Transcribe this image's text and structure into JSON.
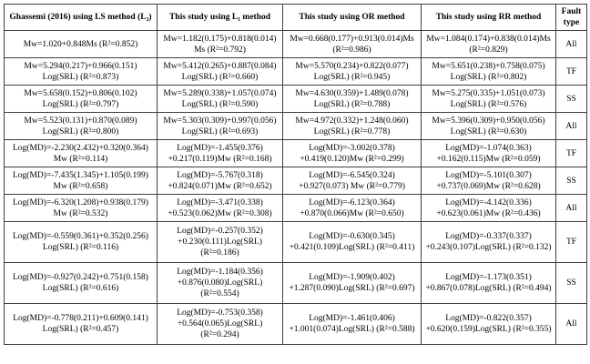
{
  "table": {
    "headers": {
      "ls": "Ghassemi (2016) using LS method (L₂)",
      "l1": "This study using L₁ method",
      "or": "This study using OR method",
      "rr": "This study using RR method",
      "fault": "Fault\ntype"
    },
    "rows": [
      {
        "ls": "Mw=1.020+0.848Ms (R²=0.852)",
        "l1": "Mw=1.182(0.175)+0.818(0.014)\nMs (R²=0.792)",
        "or": "Mw=0.668(0.177)+0.913(0.014)Ms\n(R²=0.986)",
        "rr": "Mw=1.084(0.174)+0.838(0.014)Ms\n(R²=0.829)",
        "fault": "All"
      },
      {
        "ls": "Mw=5.294(0.217)+0.966(0.151)\nLog(SRL) (R²=0.873)",
        "l1": "Mw=5.412(0.265)+0.887(0.084)\nLog(SRL) (R²=0.660)",
        "or": "Mw=5.570(0.234)+0.822(0.077)\nLog(SRL) (R²=0.945)",
        "rr": "Mw=5.651(0.238)+0.758(0.075)\nLog(SRL) (R²=0.802)",
        "fault": "TF"
      },
      {
        "ls": "Mw=5.658(0.152)+0.806(0.102)\nLog(SRL) (R²=0.797)",
        "l1": "Mw=5.289(0.338)+1.057(0.074)\nLog(SRL) (R²=0.590)",
        "or": "Mw=4.630(0.359)+1.489(0.078)\nLog(SRL) (R²=0.788)",
        "rr": "Mw=5.275(0.335)+1.051(0.073)\nLog(SRL) (R²=0.576)",
        "fault": "SS"
      },
      {
        "ls": "Mw=5.523(0.131)+0.870(0.089)\nLog(SRL) (R²=0.800)",
        "l1": "Mw=5.303(0.309)+0.997(0.056)\nLog(SRL) (R²=0.693)",
        "or": "Mw=4.972(0.332)+1.248(0.060)\nLog(SRL) (R²=0.778)",
        "rr": "Mw=5.396(0.309)+0.950(0.056)\nLog(SRL) (R²=0.630)",
        "fault": "All"
      },
      {
        "ls": "Log(MD)=-2.230(2.432)+0.320(0.364)\nMw (R²=0.114)",
        "l1": "Log(MD)=-1.455(0.376)\n+0.217(0.119)Mw (R²=0.168)",
        "or": "Log(MD)=-3.002(0.378)\n+0.419(0.120)Mw (R²=0.299)",
        "rr": "Log(MD)=-1.074(0.363)\n+0.162(0.115)Mw (R²=0.059)",
        "fault": "TF"
      },
      {
        "ls": "Log(MD)=-7.435(1.345)+1.105(0.199)\nMw (R²=0.658)",
        "l1": "Log(MD)=-5.767(0.318)\n+0.824(0.071)Mw (R²=0.652)",
        "or": "Log(MD)=-6.545(0.324)\n+0.927(0.073) Mw (R²=0.779)",
        "rr": "Log(MD)=-5.101(0.307)\n+0.737(0.069)Mw (R²=0.628)",
        "fault": "SS"
      },
      {
        "ls": "Log(MD)=-6.320(1.208)+0.938(0.179)\nMw (R²=0.532)",
        "l1": "Log(MD)=-3.471(0.338)\n+0.523(0.062)Mw (R²=0.308)",
        "or": "Log(MD)=-6.123(0.364)\n+0.870(0.066)Mw (R²=0.650)",
        "rr": "Log(MD)=-4.142(0.336)\n+0.623(0.061)Mw (R²=0.436)",
        "fault": "All"
      },
      {
        "ls": "Log(MD)=-0.559(0.361)+0.352(0.256)\nLog(SRL) (R²=0.116)",
        "l1": "Log(MD)=-0.257(0.352)\n+0.230(0.111)Log(SRL)\n(R²=0.186)",
        "or": "Log(MD)=-0.630(0.345)\n+0.421(0.109)Log(SRL) (R²=0.411)",
        "rr": "Log(MD)=-0.337(0.337)\n+0.243(0.107)Log(SRL) (R²=0.132)",
        "fault": "TF"
      },
      {
        "ls": "Log(MD)=-0.927(0.242)+0.751(0.158)\nLog(SRL) (R²=0.616)",
        "l1": "Log(MD)=-1.184(0.356)\n+0.876(0.080)Log(SRL)\n(R²=0.554)",
        "or": "Log(MD)=-1.909(0.402)\n+1.287(0.090)Log(SRL) (R²=0.697)",
        "rr": "Log(MD)=-1.173(0.351)\n+0.867(0.078)Log(SRL) (R²=0.494)",
        "fault": "SS"
      },
      {
        "ls": "Log(MD)=-0.778(0.211)+0.609(0.141)\nLog(SRL) (R²=0.457)",
        "l1": "Log(MD)=-0.753(0.358)\n+0.564(0.065)Log(SRL)\n(R²=0.294)",
        "or": "Log(MD)=-1.461(0.406)\n+1.001(0.074)Log(SRL) (R²=0.588)",
        "rr": "Log(MD)=-0.822(0.357)\n+0.620(0.159)Log(SRL) (R²=0.355)",
        "fault": "All"
      }
    ]
  }
}
